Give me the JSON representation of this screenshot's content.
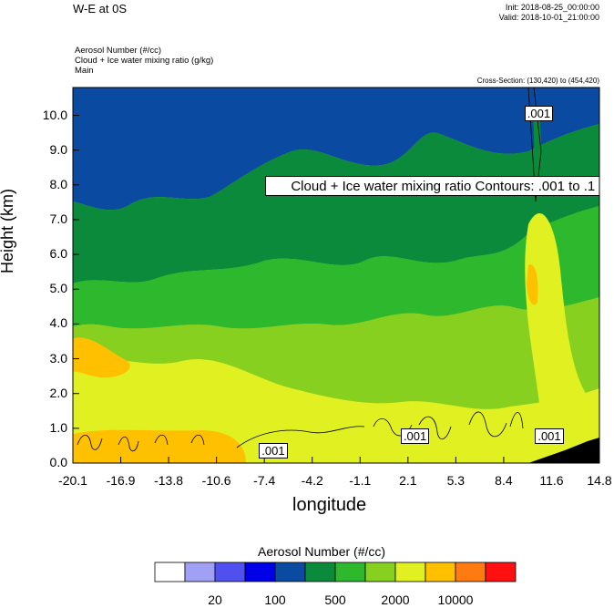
{
  "header": {
    "title": "W-E at 0S",
    "init": "Init: 2018-08-25_00:00:00",
    "valid": "Valid: 2018-10-01_21:00:00",
    "field1": "Aerosol Number   (#/cc)",
    "field2": "Cloud + Ice water mixing ratio   (g/kg)",
    "field3": "Main",
    "cross_section": "Cross-Section: (130,420) to (454,420)"
  },
  "chart_data": {
    "type": "heatmap",
    "title": "W-E at 0S",
    "xlabel": "longitude",
    "ylabel": "Height (km)",
    "xlim": [
      -20.1,
      14.8
    ],
    "ylim": [
      0.0,
      10.8
    ],
    "x_ticks": [
      "-20.1",
      "-16.9",
      "-13.8",
      "-10.6",
      "-7.4",
      "-4.2",
      "-1.1",
      "2.1",
      "5.3",
      "8.4",
      "11.6",
      "14.8"
    ],
    "y_ticks": [
      "0.0",
      "1.0",
      "2.0",
      "3.0",
      "4.0",
      "5.0",
      "6.0",
      "7.0",
      "8.0",
      "9.0",
      "10.0"
    ],
    "contour_annotation": "Cloud + Ice water mixing ratio Contours: .001 to .1 by .099",
    "contour_labels": [
      {
        "text": ".001",
        "x": -6.8,
        "y": 0.35
      },
      {
        "text": ".001",
        "x": 2.6,
        "y": 0.75
      },
      {
        "text": ".001",
        "x": 11.5,
        "y": 0.75
      },
      {
        "text": ".001",
        "x": 10.8,
        "y": 10.05
      }
    ],
    "colorbar": {
      "title": "Aerosol Number  (#/cc)",
      "colors": [
        "#ffffff",
        "#a0a0f5",
        "#5050f0",
        "#0000e8",
        "#0a4aa0",
        "#0a8a3a",
        "#2db82d",
        "#88d020",
        "#e0f020",
        "#ffc000",
        "#ff7a10",
        "#ff1010"
      ],
      "labels": [
        "20",
        "100",
        "500",
        "2000",
        "10000"
      ]
    }
  }
}
